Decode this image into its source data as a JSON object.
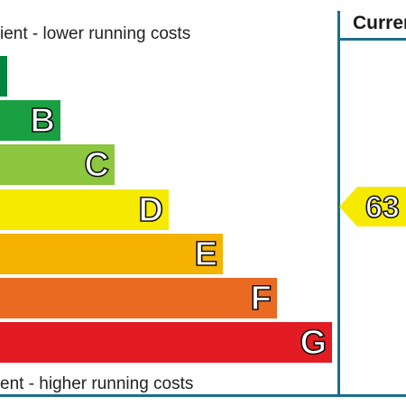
{
  "captions": {
    "top": "ient - lower running costs",
    "bottom": "ent - higher running costs"
  },
  "current": {
    "header": "Curren",
    "value": "63",
    "color": "#f5ea00"
  },
  "bands": [
    {
      "letter": "",
      "color": "#00853e"
    },
    {
      "letter": "B",
      "color": "#1aa043"
    },
    {
      "letter": "C",
      "color": "#8dc63f"
    },
    {
      "letter": "D",
      "color": "#f5ea00"
    },
    {
      "letter": "E",
      "color": "#f5b300"
    },
    {
      "letter": "F",
      "color": "#eb6a23"
    },
    {
      "letter": "G",
      "color": "#e31b23"
    }
  ]
}
